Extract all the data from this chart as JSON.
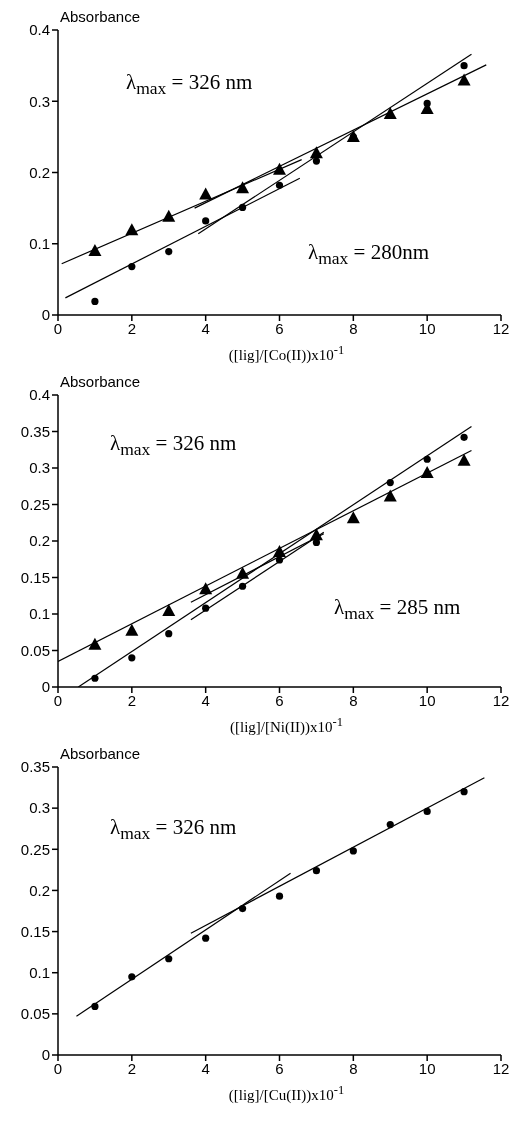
{
  "chart_data": [
    {
      "type": "scatter",
      "ylabel": "Absorbance",
      "xlabel": "([lig]/[Co(II))x10$^{-1}$",
      "x": [
        1,
        2,
        3,
        4,
        5,
        6,
        7,
        8,
        9,
        10,
        11
      ],
      "xlim": [
        0,
        12
      ],
      "xticks": [
        0,
        2,
        4,
        6,
        8,
        10,
        12
      ],
      "ylim": [
        0,
        0.4
      ],
      "yticks": [
        0,
        0.1,
        0.2,
        0.3,
        0.4
      ],
      "grid": false,
      "legend": false,
      "annotations": [
        "λ$_{max}$ = 326 nm",
        "λ$_{max}$ = 280nm"
      ],
      "series": [
        {
          "color": "#000000",
          "marker": "triangle",
          "values": [
            0.09,
            0.119,
            0.138,
            0.169,
            0.178,
            0.204,
            0.227,
            0.25,
            0.282,
            0.289,
            0.329
          ]
        },
        {
          "color": "#000000",
          "marker": "circle",
          "values": [
            0.019,
            0.068,
            0.089,
            0.132,
            0.151,
            0.182,
            0.216,
            0.25,
            null,
            0.297,
            0.35
          ]
        },
        {
          "type": "line",
          "color": "#000000",
          "marker": "none",
          "line_style": "solid",
          "x": [
            0.1,
            6.6
          ],
          "values": [
            0.072,
            0.218
          ]
        },
        {
          "type": "line",
          "color": "#000000",
          "marker": "none",
          "line_style": "solid",
          "x": [
            0.2,
            6.55
          ],
          "values": [
            0.024,
            0.192
          ]
        },
        {
          "type": "line",
          "color": "#000000",
          "marker": "none",
          "line_style": "solid",
          "x": [
            3.8,
            11.2
          ],
          "values": [
            0.114,
            0.366
          ]
        },
        {
          "type": "line",
          "color": "#000000",
          "marker": "none",
          "line_style": "solid",
          "x": [
            3.7,
            11.6
          ],
          "values": [
            0.15,
            0.351
          ]
        }
      ]
    },
    {
      "type": "scatter",
      "ylabel": "Absorbance",
      "xlabel": "([lig]/[Ni(II))x10$^{-1}$",
      "x": [
        1,
        2,
        3,
        4,
        5,
        6,
        7,
        8,
        9,
        10,
        11
      ],
      "xlim": [
        0,
        12
      ],
      "xticks": [
        0,
        2,
        4,
        6,
        8,
        10,
        12
      ],
      "ylim": [
        0,
        0.4
      ],
      "yticks": [
        0,
        0.05,
        0.1,
        0.15,
        0.2,
        0.25,
        0.3,
        0.35,
        0.4
      ],
      "grid": false,
      "legend": false,
      "annotations": [
        "λ$_{max}$ = 326 nm",
        "λ$_{max}$ = 285 nm"
      ],
      "series": [
        {
          "color": "#000000",
          "marker": "triangle",
          "values": [
            0.058,
            0.077,
            0.104,
            0.134,
            0.155,
            0.185,
            0.208,
            0.231,
            0.261,
            0.293,
            0.31
          ]
        },
        {
          "color": "#000000",
          "marker": "circle",
          "values": [
            0.012,
            0.04,
            0.073,
            0.108,
            0.138,
            0.174,
            0.198,
            null,
            0.28,
            0.312,
            0.342
          ]
        },
        {
          "type": "line",
          "color": "#000000",
          "marker": "none",
          "line_style": "solid",
          "x": [
            0,
            11.2
          ],
          "values": [
            0.035,
            0.324
          ]
        },
        {
          "type": "line",
          "color": "#000000",
          "marker": "none",
          "line_style": "solid",
          "x": [
            0.55,
            11.2
          ],
          "values": [
            0,
            0.357
          ]
        },
        {
          "type": "line",
          "color": "#000000",
          "marker": "none",
          "line_style": "solid",
          "x": [
            3.6,
            7.2
          ],
          "values": [
            0.092,
            0.212
          ]
        },
        {
          "type": "line",
          "color": "#000000",
          "marker": "none",
          "line_style": "solid",
          "x": [
            3.6,
            7.2
          ],
          "values": [
            0.116,
            0.21
          ]
        }
      ]
    },
    {
      "type": "scatter",
      "ylabel": "Absorbance",
      "xlabel": "([lig]/[Cu(II))x10$^{-1}$",
      "x": [
        1,
        2,
        3,
        4,
        5,
        6,
        7,
        8,
        9,
        10,
        11
      ],
      "xlim": [
        0,
        12
      ],
      "xticks": [
        0,
        2,
        4,
        6,
        8,
        10,
        12
      ],
      "ylim": [
        0,
        0.35
      ],
      "yticks": [
        0,
        0.05,
        0.1,
        0.15,
        0.2,
        0.25,
        0.3,
        0.35
      ],
      "grid": false,
      "legend": false,
      "annotations": [
        "λ$_{max}$ = 326 nm"
      ],
      "series": [
        {
          "color": "#000000",
          "marker": "circle",
          "values": [
            0.059,
            0.095,
            0.117,
            0.142,
            0.178,
            0.193,
            0.224,
            0.248,
            0.28,
            0.296,
            0.32
          ]
        },
        {
          "type": "line",
          "color": "#000000",
          "marker": "none",
          "line_style": "solid",
          "x": [
            0.5,
            6.3
          ],
          "values": [
            0.047,
            0.221
          ]
        },
        {
          "type": "line",
          "color": "#000000",
          "marker": "none",
          "line_style": "solid",
          "x": [
            3.6,
            11.55
          ],
          "values": [
            0.148,
            0.337
          ]
        }
      ]
    }
  ]
}
